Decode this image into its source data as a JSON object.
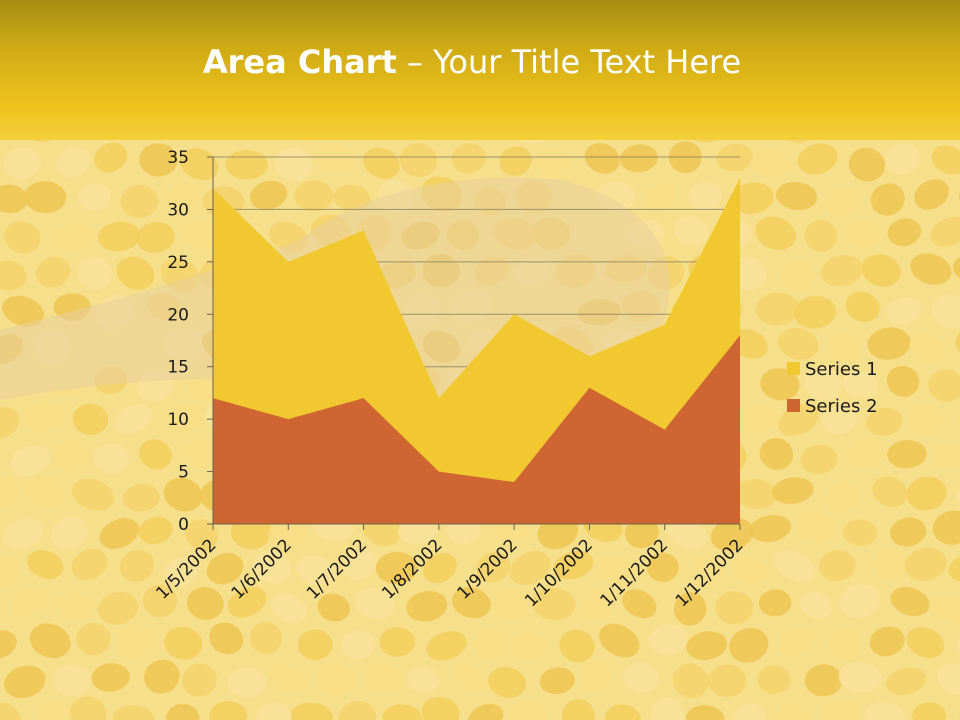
{
  "slide": {
    "title_bold": "Area Chart",
    "title_rest": " – Your Title Text Here"
  },
  "colors": {
    "header": "#eec21c",
    "series1": "#f2c830",
    "series2": "#cf6631",
    "gridline": "#8a8060",
    "title_text": "#ffffff"
  },
  "chart_data": {
    "type": "area",
    "categories": [
      "1/5/2002",
      "1/6/2002",
      "1/7/2002",
      "1/8/2002",
      "1/9/2002",
      "1/10/2002",
      "1/11/2002",
      "1/12/2002"
    ],
    "series": [
      {
        "name": "Series 1",
        "values": [
          32,
          25,
          28,
          12,
          20,
          16,
          19,
          33
        ]
      },
      {
        "name": "Series 2",
        "values": [
          12,
          10,
          12,
          5,
          4,
          13,
          9,
          18
        ]
      }
    ],
    "y_ticks": [
      "0",
      "5",
      "10",
      "15",
      "20",
      "25",
      "30",
      "35"
    ],
    "ylim": [
      0,
      35
    ],
    "grid": true,
    "legend": "right"
  }
}
